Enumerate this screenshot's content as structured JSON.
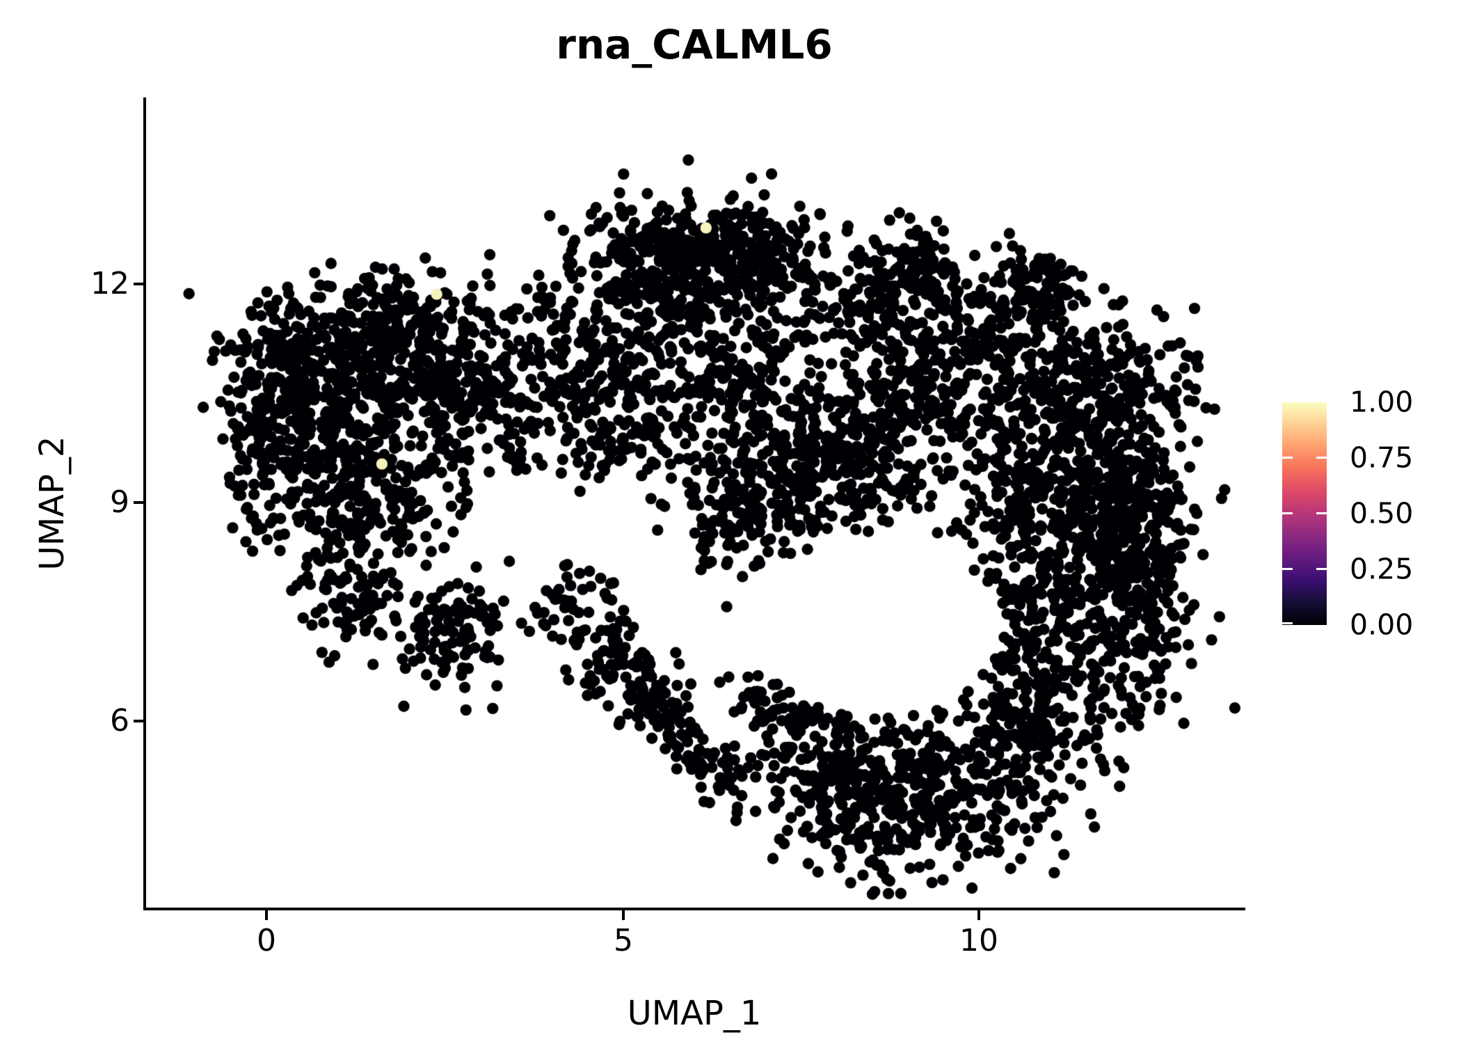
{
  "title": "rna_CALML6",
  "axes": {
    "x": {
      "label": "UMAP_1",
      "tick_labels": [
        "0",
        "5",
        "10"
      ],
      "tick_values": [
        0,
        5,
        10
      ],
      "range": [
        -1.69,
        13.72
      ]
    },
    "y": {
      "label": "UMAP_2",
      "tick_labels": [
        "12",
        "9",
        "6"
      ],
      "tick_values": [
        12,
        9,
        6
      ],
      "range": [
        3.42,
        14.56
      ]
    }
  },
  "legend": {
    "labels": [
      "1.00",
      "0.75",
      "0.50",
      "0.25",
      "0.00"
    ],
    "colormap_name": "magma",
    "gradient_stops": [
      "#000004",
      "#140e36",
      "#3b0f70",
      "#641a80",
      "#8c2981",
      "#b73779",
      "#de4968",
      "#f7705c",
      "#fe9f6d",
      "#fecf92",
      "#fcfdbf"
    ],
    "tick_color": "#ffffff"
  },
  "chart_data": {
    "type": "scatter",
    "title": "rna_CALML6",
    "xlabel": "UMAP_1",
    "ylabel": "UMAP_2",
    "xlim": [
      -1.69,
      13.72
    ],
    "ylim": [
      3.42,
      14.56
    ],
    "x_ticks": [
      0,
      5,
      10
    ],
    "y_ticks": [
      6,
      9,
      12
    ],
    "grid": false,
    "legend_position": "right",
    "point_color": "#000004",
    "point_radius_px": 8.2,
    "seed": 1337,
    "n_points_approx": 5000,
    "clusters": [
      {
        "cx": 1.2,
        "cy": 10.8,
        "sx": 0.8,
        "sy": 0.55,
        "n": 400
      },
      {
        "cx": 0.1,
        "cy": 10.35,
        "sx": 0.38,
        "sy": 0.55,
        "n": 140
      },
      {
        "cx": 1.9,
        "cy": 11.5,
        "sx": 0.65,
        "sy": 0.35,
        "n": 120
      },
      {
        "cx": 2.6,
        "cy": 10.4,
        "sx": 0.45,
        "sy": 0.55,
        "n": 120
      },
      {
        "cx": 0.8,
        "cy": 9.5,
        "sx": 0.5,
        "sy": 0.45,
        "n": 130
      },
      {
        "cx": 1.8,
        "cy": 9.0,
        "sx": 0.6,
        "sy": 0.5,
        "n": 110
      },
      {
        "cx": 0.9,
        "cy": 8.3,
        "sx": 0.45,
        "sy": 0.45,
        "n": 70
      },
      {
        "cx": 2.75,
        "cy": 7.25,
        "sx": 0.4,
        "sy": 0.4,
        "n": 100
      },
      {
        "cx": 1.3,
        "cy": 7.6,
        "sx": 0.5,
        "sy": 0.4,
        "n": 60
      },
      {
        "cx": -0.15,
        "cy": 9.1,
        "sx": 0.25,
        "sy": 0.4,
        "n": 30
      },
      {
        "cx": 6.0,
        "cy": 12.5,
        "sx": 0.8,
        "sy": 0.38,
        "n": 280
      },
      {
        "cx": 5.5,
        "cy": 11.8,
        "sx": 0.7,
        "sy": 0.4,
        "n": 160
      },
      {
        "cx": 6.9,
        "cy": 12.1,
        "sx": 0.5,
        "sy": 0.4,
        "n": 100
      },
      {
        "cx": 3.9,
        "cy": 11.2,
        "sx": 0.6,
        "sy": 0.4,
        "n": 90
      },
      {
        "cx": 4.6,
        "cy": 10.3,
        "sx": 0.55,
        "sy": 0.5,
        "n": 100
      },
      {
        "cx": 5.7,
        "cy": 10.4,
        "sx": 0.7,
        "sy": 0.55,
        "n": 150
      },
      {
        "cx": 6.7,
        "cy": 10.9,
        "sx": 0.5,
        "sy": 0.5,
        "n": 90
      },
      {
        "cx": 3.3,
        "cy": 10.2,
        "sx": 0.4,
        "sy": 0.45,
        "n": 60
      },
      {
        "cx": 7.9,
        "cy": 9.6,
        "sx": 0.7,
        "sy": 0.55,
        "n": 340
      },
      {
        "cx": 6.7,
        "cy": 8.9,
        "sx": 0.5,
        "sy": 0.45,
        "n": 130
      },
      {
        "cx": 8.9,
        "cy": 10.4,
        "sx": 0.5,
        "sy": 0.5,
        "n": 90
      },
      {
        "cx": 8.4,
        "cy": 11.8,
        "sx": 0.6,
        "sy": 0.42,
        "n": 160
      },
      {
        "cx": 9.25,
        "cy": 12.2,
        "sx": 0.32,
        "sy": 0.28,
        "n": 70
      },
      {
        "cx": 10.1,
        "cy": 11.5,
        "sx": 0.5,
        "sy": 0.5,
        "n": 120
      },
      {
        "cx": 10.85,
        "cy": 11.9,
        "sx": 0.3,
        "sy": 0.28,
        "n": 80
      },
      {
        "cx": 9.7,
        "cy": 10.6,
        "sx": 0.5,
        "sy": 0.5,
        "n": 90
      },
      {
        "cx": 11.5,
        "cy": 10.5,
        "sx": 0.7,
        "sy": 0.6,
        "n": 300
      },
      {
        "cx": 11.8,
        "cy": 9.0,
        "sx": 0.6,
        "sy": 0.8,
        "n": 340
      },
      {
        "cx": 11.3,
        "cy": 7.4,
        "sx": 0.65,
        "sy": 0.75,
        "n": 300
      },
      {
        "cx": 12.4,
        "cy": 8.2,
        "sx": 0.3,
        "sy": 1.0,
        "n": 130
      },
      {
        "cx": 10.5,
        "cy": 9.0,
        "sx": 0.45,
        "sy": 0.8,
        "n": 130
      },
      {
        "cx": 10.6,
        "cy": 6.0,
        "sx": 0.6,
        "sy": 0.6,
        "n": 200
      },
      {
        "cx": 9.3,
        "cy": 5.0,
        "sx": 0.75,
        "sy": 0.55,
        "n": 280
      },
      {
        "cx": 8.1,
        "cy": 4.9,
        "sx": 0.5,
        "sy": 0.45,
        "n": 140
      },
      {
        "cx": 7.8,
        "cy": 5.8,
        "sx": 0.45,
        "sy": 0.4,
        "n": 90
      }
    ],
    "trails": [
      {
        "x1": 4.1,
        "y1": 7.7,
        "x2": 5.4,
        "y2": 6.3,
        "jitter": 0.33,
        "n": 130
      },
      {
        "x1": 5.4,
        "y1": 6.3,
        "x2": 6.7,
        "y2": 4.95,
        "jitter": 0.28,
        "n": 100
      },
      {
        "x1": 6.8,
        "y1": 6.3,
        "x2": 7.4,
        "y2": 5.9,
        "jitter": 0.3,
        "n": 45
      }
    ],
    "voids": [
      {
        "cx": 8.6,
        "cy": 7.3,
        "rx": 1.7,
        "ry": 1.25
      },
      {
        "cx": 3.6,
        "cy": 8.9,
        "rx": 0.5,
        "ry": 0.55
      },
      {
        "cx": 4.9,
        "cy": 8.35,
        "rx": 0.45,
        "ry": 0.4
      }
    ],
    "highlight_points": [
      {
        "x": 6.17,
        "y": 12.77,
        "value": 1.0,
        "color": "#f5f2bc"
      },
      {
        "x": 2.39,
        "y": 11.86,
        "value": 1.0,
        "color": "#f5f2bc"
      },
      {
        "x": 1.62,
        "y": 9.53,
        "value": 1.0,
        "color": "#f5f2bc"
      }
    ]
  }
}
